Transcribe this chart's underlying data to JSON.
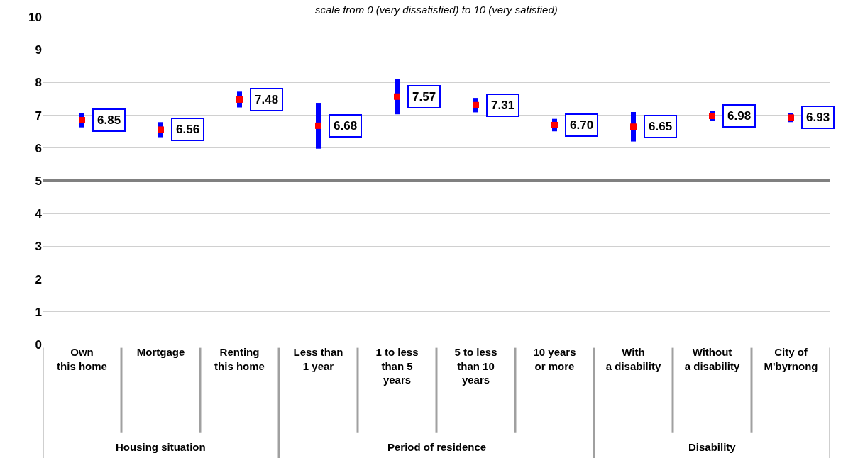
{
  "chart_data": {
    "type": "scatter",
    "title": "scale from 0 (very dissatisfied) to 10 (very satisfied)",
    "categories": [
      "Own\nthis home",
      "Mortgage",
      "Renting\nthis home",
      "Less than\n1 year",
      "1 to less\nthan 5\nyears",
      "5 to less\nthan 10\nyears",
      "10 years\nor more",
      "With\na disability",
      "Without\na disability",
      "City of\nM'byrnong"
    ],
    "values": [
      6.85,
      6.56,
      7.48,
      6.68,
      7.57,
      7.31,
      6.7,
      6.65,
      6.98,
      6.93
    ],
    "value_labels": [
      "6.85",
      "6.56",
      "7.48",
      "6.68",
      "7.57",
      "7.31",
      "6.70",
      "6.65",
      "6.98",
      "6.93"
    ],
    "errors": [
      0.22,
      0.23,
      0.24,
      0.7,
      0.54,
      0.22,
      0.19,
      0.45,
      0.15,
      0.14
    ],
    "color": "#ff0000",
    "marker": "square",
    "annotations": [
      "Housing situation",
      "Period of residence",
      "Disability"
    ],
    "ref_lines": [
      {
        "axis": "y",
        "value": 5,
        "color": "#808080"
      }
    ],
    "ylim": [
      0,
      10
    ],
    "yticks": [
      0,
      1,
      2,
      3,
      4,
      5,
      6,
      7,
      8,
      9,
      10
    ],
    "grid": "y",
    "legend": false
  }
}
